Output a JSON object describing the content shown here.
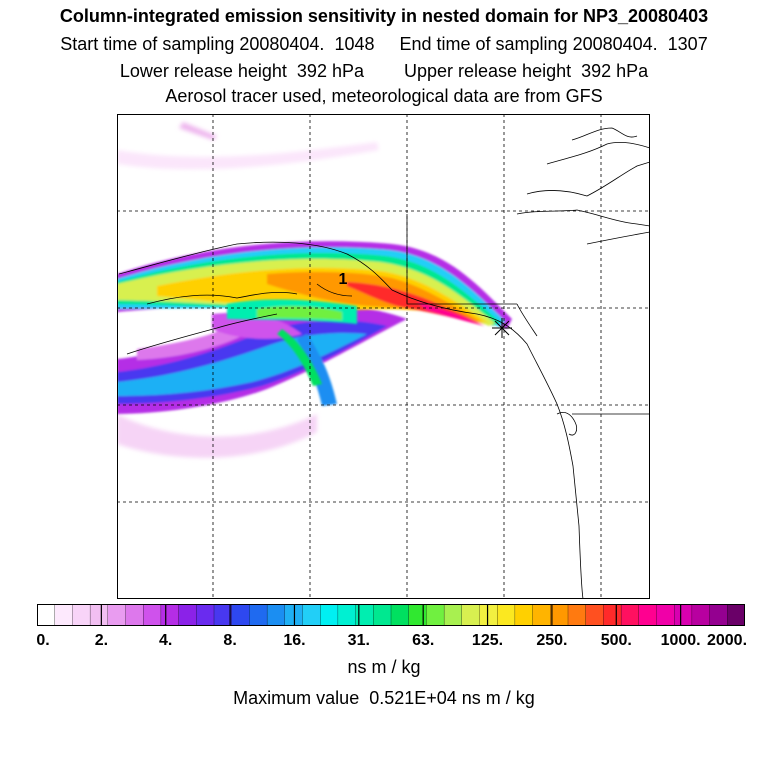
{
  "title": "Column-integrated emission sensitivity in nested domain for NP3_20080403",
  "subtitle_rows": [
    "Start time of sampling 20080404.  1048     End time of sampling 20080404.  1307",
    "Lower release height  392 hPa        Upper release height  392 hPa",
    "Aerosol tracer used, meteorological data are from GFS"
  ],
  "map": {
    "point_label": "1"
  },
  "colorbar": {
    "tick_labels": [
      "0.",
      "2.",
      "4.",
      "8.",
      "16.",
      "31.",
      "63.",
      "125.",
      "250.",
      "500.",
      "1000.",
      "2000."
    ],
    "colors": [
      "#ffffff",
      "#fde9fd",
      "#f8d4f8",
      "#f2bff2",
      "#e99cf0",
      "#dd78ec",
      "#cf52ec",
      "#b52de6",
      "#8b22e8",
      "#6a2bef",
      "#4838f0",
      "#2e48f0",
      "#1f6af0",
      "#1b8ef2",
      "#1fb0f5",
      "#22cff7",
      "#00f0f2",
      "#00f0d2",
      "#00eeb0",
      "#00e890",
      "#00e060",
      "#30e830",
      "#70f040",
      "#a8f050",
      "#d8f050",
      "#f2f040",
      "#fbe820",
      "#ffd000",
      "#ffb400",
      "#ff9800",
      "#ff7a10",
      "#ff5020",
      "#ff2a2a",
      "#ff1060",
      "#ff0090",
      "#f000a8",
      "#d800b0",
      "#b800a0",
      "#940090",
      "#6a0068"
    ],
    "units": "ns m / kg",
    "max_value_text": "Maximum value  0.521E+04 ns m / kg"
  }
}
